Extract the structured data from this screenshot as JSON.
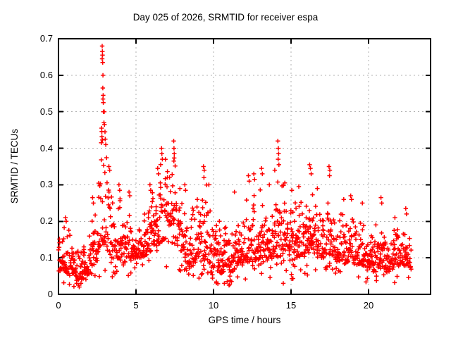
{
  "chart_data": {
    "type": "scatter",
    "title": "Day 025 of 2026, SRMTID for receiver espa",
    "xlabel": "GPS time / hours",
    "ylabel": "SRMTID / TECUs",
    "xlim": [
      0,
      24
    ],
    "ylim": [
      0,
      0.7
    ],
    "grid": "dashed",
    "legend": "none",
    "marker": {
      "shape": "plus",
      "size": 7,
      "color": "#ff0000"
    },
    "colors": {
      "background": "#ffffff",
      "border": "#000000",
      "grid": "#b0b0b0",
      "points": "#ff0000",
      "text": "#000000"
    },
    "x_ticks": [
      {
        "v": 0,
        "label": "0"
      },
      {
        "v": 5,
        "label": "5"
      },
      {
        "v": 10,
        "label": "10"
      },
      {
        "v": 15,
        "label": "15"
      },
      {
        "v": 20,
        "label": "20"
      }
    ],
    "y_ticks": [
      {
        "v": 0.0,
        "label": "0"
      },
      {
        "v": 0.1,
        "label": "0.1"
      },
      {
        "v": 0.2,
        "label": "0.2"
      },
      {
        "v": 0.3,
        "label": "0.3"
      },
      {
        "v": 0.4,
        "label": "0.4"
      },
      {
        "v": 0.5,
        "label": "0.5"
      },
      {
        "v": 0.6,
        "label": "0.6"
      },
      {
        "v": 0.7,
        "label": "0.7"
      }
    ],
    "series": [
      {
        "name": "SRMTID",
        "color": "#ff0000",
        "t_start": 0.0,
        "t_end": 22.75,
        "epoch_step_hours": 0.0333,
        "band_envelope_t_lo_hi": [
          [
            0.0,
            0.06,
            0.16
          ],
          [
            0.4,
            0.06,
            0.19
          ],
          [
            0.8,
            0.05,
            0.15
          ],
          [
            1.2,
            0.04,
            0.13
          ],
          [
            1.5,
            0.04,
            0.12
          ],
          [
            1.8,
            0.05,
            0.15
          ],
          [
            2.1,
            0.06,
            0.19
          ],
          [
            2.4,
            0.08,
            0.23
          ],
          [
            2.65,
            0.11,
            0.33
          ],
          [
            2.85,
            0.14,
            0.46
          ],
          [
            3.05,
            0.13,
            0.4
          ],
          [
            3.3,
            0.1,
            0.32
          ],
          [
            3.6,
            0.08,
            0.24
          ],
          [
            3.9,
            0.09,
            0.26
          ],
          [
            4.2,
            0.08,
            0.18
          ],
          [
            4.6,
            0.09,
            0.21
          ],
          [
            5.0,
            0.1,
            0.17
          ],
          [
            5.4,
            0.1,
            0.2
          ],
          [
            5.8,
            0.11,
            0.25
          ],
          [
            6.2,
            0.13,
            0.3
          ],
          [
            6.6,
            0.14,
            0.34
          ],
          [
            6.9,
            0.15,
            0.36
          ],
          [
            7.2,
            0.14,
            0.32
          ],
          [
            7.45,
            0.14,
            0.36
          ],
          [
            7.7,
            0.13,
            0.3
          ],
          [
            8.0,
            0.1,
            0.26
          ],
          [
            8.4,
            0.07,
            0.21
          ],
          [
            8.8,
            0.08,
            0.23
          ],
          [
            9.2,
            0.09,
            0.28
          ],
          [
            9.45,
            0.09,
            0.31
          ],
          [
            9.7,
            0.08,
            0.26
          ],
          [
            10.0,
            0.07,
            0.21
          ],
          [
            10.4,
            0.06,
            0.19
          ],
          [
            10.8,
            0.05,
            0.18
          ],
          [
            11.2,
            0.06,
            0.19
          ],
          [
            11.6,
            0.08,
            0.2
          ],
          [
            12.0,
            0.08,
            0.23
          ],
          [
            12.3,
            0.09,
            0.28
          ],
          [
            12.7,
            0.09,
            0.27
          ],
          [
            13.1,
            0.1,
            0.29
          ],
          [
            13.5,
            0.09,
            0.25
          ],
          [
            13.9,
            0.1,
            0.27
          ],
          [
            14.2,
            0.1,
            0.31
          ],
          [
            14.6,
            0.1,
            0.27
          ],
          [
            15.0,
            0.09,
            0.23
          ],
          [
            15.4,
            0.1,
            0.25
          ],
          [
            15.8,
            0.1,
            0.23
          ],
          [
            16.1,
            0.11,
            0.27
          ],
          [
            16.35,
            0.12,
            0.3
          ],
          [
            16.7,
            0.1,
            0.25
          ],
          [
            17.1,
            0.1,
            0.23
          ],
          [
            17.5,
            0.11,
            0.28
          ],
          [
            17.9,
            0.09,
            0.23
          ],
          [
            18.3,
            0.08,
            0.21
          ],
          [
            18.8,
            0.09,
            0.23
          ],
          [
            19.2,
            0.08,
            0.19
          ],
          [
            19.6,
            0.08,
            0.21
          ],
          [
            20.0,
            0.07,
            0.19
          ],
          [
            20.4,
            0.08,
            0.21
          ],
          [
            20.8,
            0.07,
            0.18
          ],
          [
            21.2,
            0.06,
            0.15
          ],
          [
            21.7,
            0.07,
            0.2
          ],
          [
            22.1,
            0.07,
            0.17
          ],
          [
            22.45,
            0.08,
            0.2
          ],
          [
            22.75,
            0.06,
            0.14
          ]
        ],
        "outlier_points_t_y": [
          [
            0.45,
            0.21
          ],
          [
            0.5,
            0.2
          ],
          [
            1.45,
            0.03
          ],
          [
            1.3,
            0.025
          ],
          [
            2.2,
            0.265
          ],
          [
            2.25,
            0.25
          ],
          [
            2.82,
            0.68
          ],
          [
            2.83,
            0.665
          ],
          [
            2.84,
            0.655
          ],
          [
            2.82,
            0.645
          ],
          [
            2.85,
            0.635
          ],
          [
            2.87,
            0.6
          ],
          [
            2.86,
            0.565
          ],
          [
            2.88,
            0.545
          ],
          [
            2.87,
            0.535
          ],
          [
            2.89,
            0.525
          ],
          [
            2.9,
            0.5
          ],
          [
            2.95,
            0.5
          ],
          [
            2.93,
            0.47
          ],
          [
            2.97,
            0.465
          ],
          [
            2.78,
            0.455
          ],
          [
            3.0,
            0.445
          ],
          [
            2.8,
            0.432
          ],
          [
            3.02,
            0.425
          ],
          [
            2.76,
            0.415
          ],
          [
            3.05,
            0.41
          ],
          [
            3.25,
            0.35
          ],
          [
            3.3,
            0.34
          ],
          [
            3.9,
            0.3
          ],
          [
            3.95,
            0.285
          ],
          [
            4.55,
            0.28
          ],
          [
            4.6,
            0.27
          ],
          [
            5.9,
            0.3
          ],
          [
            5.95,
            0.285
          ],
          [
            6.4,
            0.345
          ],
          [
            6.45,
            0.33
          ],
          [
            6.65,
            0.4
          ],
          [
            6.67,
            0.385
          ],
          [
            6.7,
            0.37
          ],
          [
            7.43,
            0.42
          ],
          [
            7.45,
            0.4
          ],
          [
            7.47,
            0.385
          ],
          [
            7.44,
            0.365
          ],
          [
            8.15,
            0.3
          ],
          [
            8.2,
            0.285
          ],
          [
            9.35,
            0.35
          ],
          [
            9.4,
            0.34
          ],
          [
            9.38,
            0.32
          ],
          [
            9.7,
            0.3
          ],
          [
            10.7,
            0.03
          ],
          [
            11.0,
            0.025
          ],
          [
            11.35,
            0.28
          ],
          [
            12.25,
            0.325
          ],
          [
            12.3,
            0.31
          ],
          [
            12.6,
            0.33
          ],
          [
            12.65,
            0.315
          ],
          [
            13.1,
            0.345
          ],
          [
            13.15,
            0.33
          ],
          [
            13.6,
            0.3
          ],
          [
            13.95,
            0.34
          ],
          [
            14.15,
            0.42
          ],
          [
            14.18,
            0.4
          ],
          [
            14.2,
            0.385
          ],
          [
            14.17,
            0.37
          ],
          [
            14.22,
            0.355
          ],
          [
            14.5,
            0.03
          ],
          [
            14.6,
            0.305
          ],
          [
            15.05,
            0.285
          ],
          [
            15.5,
            0.295
          ],
          [
            16.2,
            0.355
          ],
          [
            16.25,
            0.345
          ],
          [
            16.3,
            0.33
          ],
          [
            16.7,
            0.29
          ],
          [
            17.45,
            0.35
          ],
          [
            17.5,
            0.34
          ],
          [
            17.48,
            0.325
          ],
          [
            18.4,
            0.26
          ],
          [
            18.85,
            0.27
          ],
          [
            18.9,
            0.26
          ],
          [
            19.6,
            0.25
          ],
          [
            20.8,
            0.265
          ],
          [
            20.85,
            0.25
          ],
          [
            21.7,
            0.21
          ],
          [
            22.4,
            0.235
          ],
          [
            22.45,
            0.22
          ]
        ]
      }
    ]
  }
}
